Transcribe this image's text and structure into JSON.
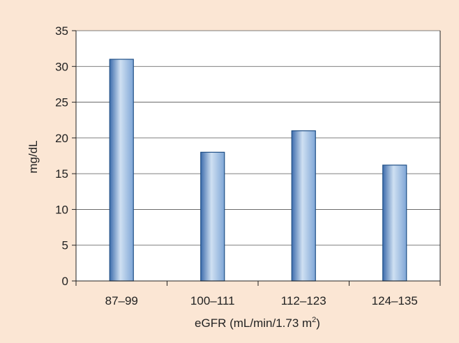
{
  "chart_data": {
    "type": "bar",
    "categories": [
      "87–99",
      "100–111",
      "112–123",
      "124–135"
    ],
    "values": [
      31,
      18,
      21,
      16.2
    ],
    "title": "",
    "xlabel": "eGFR (mL/min/1.73 m",
    "xlabel_superscript": "2",
    "xlabel_suffix": ")",
    "ylabel": "mg/dL",
    "ylim": [
      0,
      35
    ],
    "yticks": [
      0,
      5,
      10,
      15,
      20,
      25,
      30,
      35
    ],
    "grid": true,
    "colors": {
      "panel_background": "#fbe6d4",
      "plot_background": "#ffffff",
      "bar_edge": "#1f4f86",
      "bar_light": "#cfe0f2",
      "bar_mid": "#7fa6d6",
      "bar_dark": "#3d6cac",
      "grid": "#555555",
      "axis": "#222222"
    }
  }
}
